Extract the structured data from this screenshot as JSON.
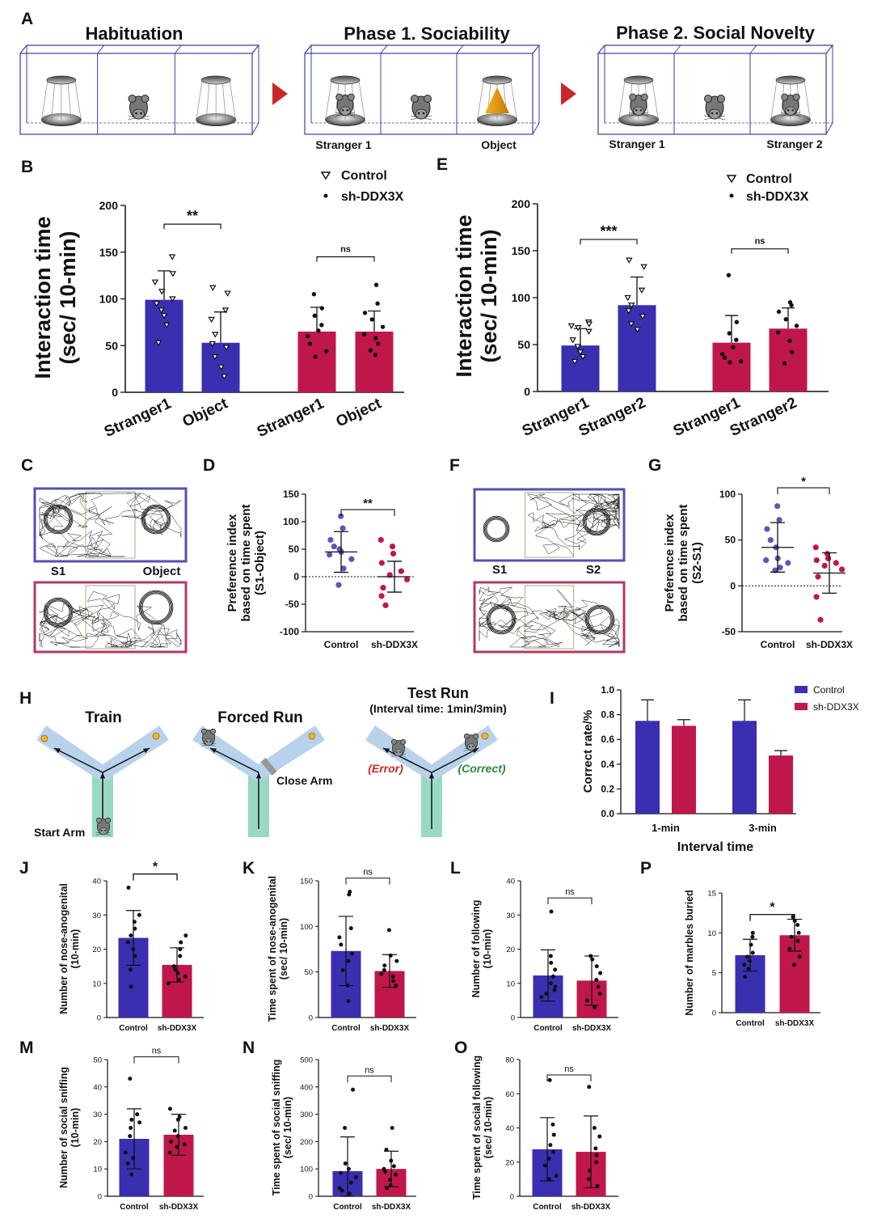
{
  "colors": {
    "control": "#3a2fb0",
    "sh": "#c0174a",
    "axis": "#111111",
    "box": "#5b59b8",
    "boxRed": "#b2325d",
    "arrow": "#cc2020",
    "arm": "#b9d2ec",
    "start": "#7fcfb4",
    "ctrlDot": "#5a56b8",
    "shDot": "#c0174a"
  },
  "panel_letters": [
    "A",
    "B",
    "C",
    "D",
    "E",
    "F",
    "G",
    "H",
    "I",
    "J",
    "K",
    "L",
    "M",
    "N",
    "O",
    "P"
  ],
  "panelA": {
    "titles": [
      "Habituation",
      "Phase 1. Sociability",
      "Phase 2. Social Novelty"
    ],
    "labels": [
      "Stranger 1",
      "Object",
      "Stranger 1",
      "Stranger 2"
    ]
  },
  "legend": {
    "control": "Control",
    "sh": "sh-DDX3X"
  },
  "panelC": {
    "left": "S1",
    "right": "Object"
  },
  "panelF": {
    "left": "S1",
    "right": "S2"
  },
  "panelH": {
    "titles": [
      "Train",
      "Forced Run",
      "Test Run"
    ],
    "subtitle": "(Interval time: 1min/3min)",
    "start_arm": "Start Arm",
    "close_arm": "Close Arm",
    "error": "(Error)",
    "correct": "(Correct)"
  },
  "chart_data": [
    {
      "panel": "B",
      "type": "bar",
      "ylabel": [
        "Interaction time",
        "(sec/ 10-min)"
      ],
      "ylim": [
        0,
        200
      ],
      "yticks": [
        0,
        50,
        100,
        150,
        200
      ],
      "categories": [
        "Stranger1",
        "Object",
        "Stranger1",
        "Object"
      ],
      "groups": [
        "control",
        "control",
        "sh",
        "sh"
      ],
      "values": [
        99,
        53,
        65,
        65
      ],
      "errors": [
        31,
        33,
        26,
        22
      ],
      "points": [
        [
          145,
          127,
          118,
          108,
          100,
          95,
          88,
          82,
          72,
          53
        ],
        [
          112,
          106,
          88,
          78,
          62,
          52,
          48,
          38,
          27,
          17
        ],
        [
          105,
          90,
          82,
          72,
          66,
          60,
          52,
          44,
          38
        ],
        [
          115,
          95,
          85,
          78,
          70,
          62,
          58,
          52,
          45,
          40
        ]
      ],
      "sig": [
        {
          "a": 0,
          "b": 1,
          "text": "**",
          "h": 180
        },
        {
          "a": 2,
          "b": 3,
          "text": "ns",
          "h": 145
        }
      ]
    },
    {
      "panel": "E",
      "type": "bar",
      "ylabel": [
        "Interaction time",
        "(sec/ 10-min)"
      ],
      "ylim": [
        0,
        200
      ],
      "yticks": [
        0,
        50,
        100,
        150,
        200
      ],
      "categories": [
        "Stranger1",
        "Stranger2",
        "Stranger1",
        "Stranger2"
      ],
      "groups": [
        "control",
        "control",
        "sh",
        "sh"
      ],
      "values": [
        49,
        92,
        52,
        67
      ],
      "errors": [
        18,
        30,
        29,
        22
      ],
      "points": [
        [
          74,
          72,
          70,
          68,
          64,
          55,
          48,
          42,
          37,
          32
        ],
        [
          140,
          133,
          108,
          100,
          92,
          86,
          80,
          72,
          66
        ],
        [
          124,
          74,
          62,
          55,
          47,
          40,
          36,
          32,
          31
        ],
        [
          95,
          92,
          85,
          77,
          70,
          63,
          54,
          42,
          30
        ]
      ],
      "sig": [
        {
          "a": 0,
          "b": 1,
          "text": "***",
          "h": 162
        },
        {
          "a": 2,
          "b": 3,
          "text": "ns",
          "h": 152
        }
      ]
    },
    {
      "panel": "D",
      "type": "scatter",
      "ylabel": [
        "Preference index",
        "based on time spent",
        "(S1-Object)"
      ],
      "ylim": [
        -100,
        150
      ],
      "yticks": [
        -100,
        -50,
        0,
        50,
        100,
        150
      ],
      "categories": [
        "Control",
        "sh-DDX3X"
      ],
      "means": [
        45,
        0
      ],
      "sds": [
        37,
        28
      ],
      "points": [
        [
          110,
          88,
          67,
          55,
          50,
          45,
          40,
          32,
          15,
          -15
        ],
        [
          67,
          55,
          42,
          25,
          10,
          3,
          -5,
          -20,
          -35,
          -52
        ]
      ],
      "sig": {
        "text": "**",
        "h": 122
      }
    },
    {
      "panel": "G",
      "type": "scatter",
      "ylabel": [
        "Preference index",
        "based on time spent",
        "(S2-S1)"
      ],
      "ylim": [
        -50,
        100
      ],
      "yticks": [
        -50,
        0,
        50,
        100
      ],
      "categories": [
        "Control",
        "sh-DDX3X"
      ],
      "means": [
        42,
        14
      ],
      "sds": [
        27,
        22
      ],
      "points": [
        [
          87,
          72,
          62,
          50,
          42,
          30,
          28,
          25,
          20,
          17
        ],
        [
          42,
          35,
          30,
          28,
          25,
          22,
          18,
          10,
          -12,
          -37
        ]
      ],
      "sig": {
        "text": "*",
        "h": 107
      }
    },
    {
      "panel": "I",
      "type": "bar",
      "ylabel": [
        "Correct rate/%"
      ],
      "xlabel": "Interval time",
      "ylim": [
        0,
        1
      ],
      "yticks": [
        "0.0",
        "0.2",
        "0.4",
        "0.6",
        "0.8",
        "1.0"
      ],
      "categories": [
        "1-min",
        "3-min"
      ],
      "series": [
        {
          "name": "Control",
          "values": [
            0.75,
            0.75
          ],
          "errors": [
            0.17,
            0.17
          ]
        },
        {
          "name": "sh-DDX3X",
          "values": [
            0.71,
            0.47
          ],
          "errors": [
            0.05,
            0.04
          ]
        }
      ]
    },
    {
      "panel": "J",
      "type": "bar",
      "ylabel": [
        "Number of nose-anogenital",
        "(10-min)"
      ],
      "ylim": [
        0,
        40
      ],
      "yticks": [
        0,
        10,
        20,
        30,
        40
      ],
      "categories": [
        "Control",
        "sh-DDX3X"
      ],
      "values": [
        23.3,
        15.4
      ],
      "errors": [
        8,
        5
      ],
      "points": [
        [
          38,
          30,
          28,
          26,
          24,
          22,
          20,
          18,
          14,
          9
        ],
        [
          24,
          22,
          20,
          18,
          15,
          14,
          13,
          12,
          11,
          10
        ]
      ],
      "sig": {
        "text": "*",
        "h": 42
      }
    },
    {
      "panel": "K",
      "type": "bar",
      "ylabel": [
        "Time spent of nose-anogenital",
        "(sec/ 10-min)"
      ],
      "ylim": [
        0,
        150
      ],
      "yticks": [
        0,
        50,
        100,
        150
      ],
      "categories": [
        "Control",
        "sh-DDX3X"
      ],
      "values": [
        73,
        51
      ],
      "errors": [
        38,
        18
      ],
      "points": [
        [
          138,
          135,
          98,
          88,
          80,
          70,
          62,
          52,
          35,
          18
        ],
        [
          96,
          68,
          62,
          57,
          52,
          48,
          45,
          40,
          35
        ]
      ],
      "sig": {
        "text": "ns",
        "h": 153
      }
    },
    {
      "panel": "L",
      "type": "bar",
      "ylabel": [
        "Number of following",
        "(10-min)"
      ],
      "ylim": [
        0,
        40
      ],
      "yticks": [
        0,
        10,
        20,
        30,
        40
      ],
      "categories": [
        "Control",
        "sh-DDX3X"
      ],
      "values": [
        12.3,
        10.8
      ],
      "errors": [
        7.5,
        7.2
      ],
      "points": [
        [
          31,
          18,
          16,
          14,
          12,
          10,
          9,
          8,
          7,
          6
        ],
        [
          18,
          17,
          15,
          13,
          11,
          9,
          7,
          5,
          3
        ]
      ],
      "sig": {
        "text": "ns",
        "h": 35
      }
    },
    {
      "panel": "M",
      "type": "bar",
      "ylabel": [
        "Number of social sniffing",
        "(10-min)"
      ],
      "ylim": [
        0,
        50
      ],
      "yticks": [
        0,
        10,
        20,
        30,
        40,
        50
      ],
      "categories": [
        "Control",
        "sh-DDX3X"
      ],
      "values": [
        21,
        22.5
      ],
      "errors": [
        11,
        7.5
      ],
      "points": [
        [
          43,
          30,
          28,
          27,
          25,
          22,
          16,
          14,
          12,
          8
        ],
        [
          32,
          29,
          28,
          25,
          24,
          22,
          20,
          19,
          18,
          16
        ]
      ],
      "sig": {
        "text": "ns",
        "h": 51
      }
    },
    {
      "panel": "N",
      "type": "bar",
      "ylabel": [
        "Time spent of social sniffing",
        "(sec/ 10-min)"
      ],
      "ylim": [
        0,
        500
      ],
      "yticks": [
        0,
        100,
        200,
        300,
        400,
        500
      ],
      "categories": [
        "Control",
        "sh-DDX3X"
      ],
      "values": [
        92,
        100
      ],
      "errors": [
        125,
        65
      ],
      "points": [
        [
          390,
          250,
          120,
          100,
          85,
          70,
          50,
          30,
          20,
          10
        ],
        [
          250,
          170,
          130,
          110,
          100,
          90,
          80,
          60,
          40,
          30
        ]
      ],
      "sig": {
        "text": "ns",
        "h": 440
      }
    },
    {
      "panel": "O",
      "type": "bar",
      "ylabel": [
        "Time spent of social following",
        "(sec/ 10-min)"
      ],
      "ylim": [
        0,
        80
      ],
      "yticks": [
        0,
        20,
        40,
        60,
        80
      ],
      "categories": [
        "Control",
        "sh-DDX3X"
      ],
      "values": [
        27.5,
        26
      ],
      "errors": [
        18.5,
        21
      ],
      "points": [
        [
          68,
          42,
          36,
          30,
          26,
          22,
          18,
          12,
          10
        ],
        [
          64,
          40,
          35,
          28,
          24,
          20,
          15,
          10,
          6
        ]
      ],
      "sig": {
        "text": "ns",
        "h": 71
      }
    },
    {
      "panel": "P",
      "type": "bar",
      "ylabel": [
        "Number of marbles buried"
      ],
      "ylim": [
        0,
        15
      ],
      "yticks": [
        0,
        5,
        10,
        15
      ],
      "categories": [
        "Control",
        "sh-DDX3X"
      ],
      "values": [
        7.2,
        9.7
      ],
      "errors": [
        2,
        2
      ],
      "points": [
        [
          10,
          9.5,
          8.5,
          7.5,
          7,
          6.5,
          6,
          5.5,
          4.5
        ],
        [
          12,
          11.5,
          11,
          10,
          9.5,
          9,
          8,
          7,
          6
        ]
      ],
      "sig": {
        "text": "*",
        "h": 12.3
      }
    }
  ]
}
